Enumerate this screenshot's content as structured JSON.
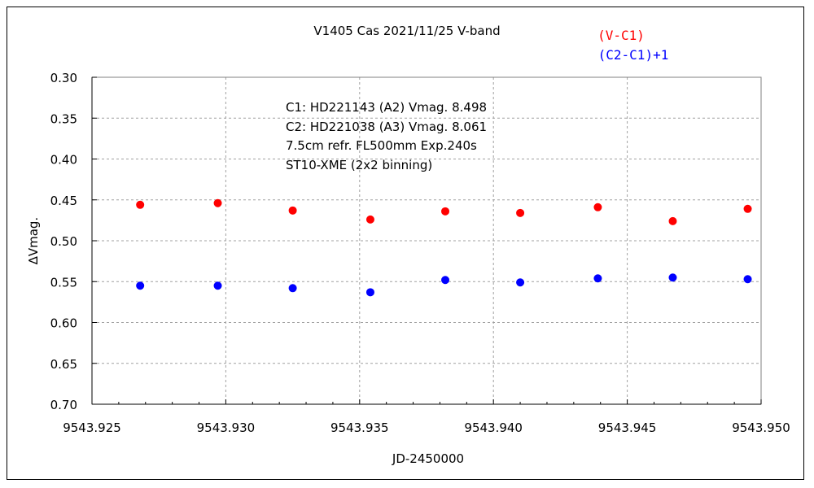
{
  "chart_data": {
    "type": "scatter",
    "title": "V1405 Cas    2021/11/25    V-band",
    "xlabel": "JD-2450000",
    "ylabel": "∆Vmag.",
    "xlim": [
      9543.925,
      9543.95
    ],
    "ylim": [
      0.3,
      0.7
    ],
    "y_inverted": true,
    "x_ticks": [
      "9543.925",
      "9543.930",
      "9543.935",
      "9543.940",
      "9543.945",
      "9543.950"
    ],
    "y_ticks": [
      "0.30",
      "0.35",
      "0.40",
      "0.45",
      "0.50",
      "0.55",
      "0.60",
      "0.65",
      "0.70"
    ],
    "x_tick_values": [
      9543.925,
      9543.93,
      9543.935,
      9543.94,
      9543.945,
      9543.95
    ],
    "y_tick_values": [
      0.3,
      0.35,
      0.4,
      0.45,
      0.5,
      0.55,
      0.6,
      0.65,
      0.7
    ],
    "grid": true,
    "legend_position": "top-right",
    "annotations": [
      "C1: HD221143 (A2) Vmag. 8.498",
      "C2: HD221038 (A3) Vmag. 8.061",
      "7.5cm refr. FL500mm Exp.240s",
      "ST10-XME (2x2 binning)"
    ],
    "series": [
      {
        "name": "(V-C1)",
        "color": "#ff0000",
        "x": [
          9543.9268,
          9543.9297,
          9543.9325,
          9543.9354,
          9543.9382,
          9543.941,
          9543.9439,
          9543.9467,
          9543.9495
        ],
        "y": [
          0.456,
          0.454,
          0.463,
          0.474,
          0.464,
          0.466,
          0.459,
          0.476,
          0.461
        ]
      },
      {
        "name": "(C2-C1)+1",
        "color": "#0000ff",
        "x": [
          9543.9268,
          9543.9297,
          9543.9325,
          9543.9354,
          9543.9382,
          9543.941,
          9543.9439,
          9543.9467,
          9543.9495
        ],
        "y": [
          0.555,
          0.555,
          0.558,
          0.563,
          0.548,
          0.551,
          0.546,
          0.545,
          0.547
        ]
      }
    ]
  }
}
